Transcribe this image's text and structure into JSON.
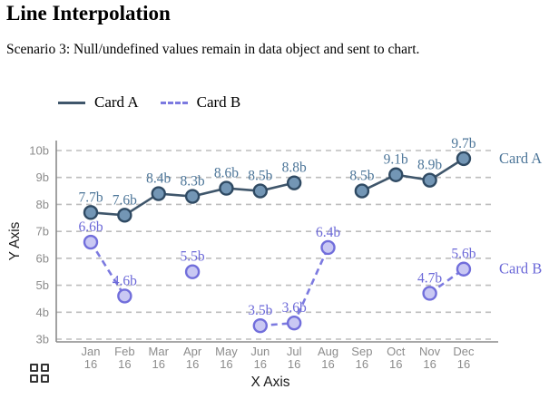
{
  "page": {
    "title": "Line Interpolation",
    "subtitle": "Scenario 3: Null/undefined values remain in data object and sent to chart."
  },
  "legend": {
    "position": "top-left",
    "items": [
      {
        "label": "Card A",
        "style": "solid"
      },
      {
        "label": "Card B",
        "style": "dashed"
      }
    ]
  },
  "chart_data": {
    "type": "line",
    "title": "Line Interpolation",
    "xlabel": "X Axis",
    "ylabel": "Y Axis",
    "ylim": [
      3,
      10
    ],
    "y_ticks": [
      "3b",
      "4b",
      "5b",
      "6b",
      "7b",
      "8b",
      "9b",
      "10b"
    ],
    "categories": [
      "Jan 16",
      "Feb 16",
      "Mar 16",
      "Apr 16",
      "May 16",
      "Jun 16",
      "Jul 16",
      "Aug 16",
      "Sep 16",
      "Oct 16",
      "Nov 16",
      "Dec 16"
    ],
    "grid": "horizontal-dashed",
    "legend_position": "top-left",
    "colors": {
      "grid": "#bdbdbd",
      "axis": "#8a8a8a",
      "tick_label": "#8c8c8c",
      "axis_label": "#1a1a1a"
    },
    "series": [
      {
        "name": "Card A",
        "line_style": "solid",
        "line_color": "#3f566b",
        "point_fill": "#7396b5",
        "point_stroke": "#2f4a63",
        "label_color": "#4d7699",
        "values": [
          7.7,
          7.6,
          8.4,
          8.3,
          8.6,
          8.5,
          8.8,
          null,
          8.5,
          9.1,
          8.9,
          9.7
        ],
        "labels": [
          "7.7b",
          "7.6b",
          "8.4b",
          "8.3b",
          "8.6b",
          "8.5b",
          "8.8b",
          null,
          "8.5b",
          "9.1b",
          "8.9b",
          "9.7b"
        ]
      },
      {
        "name": "Card B",
        "line_style": "dashed",
        "line_color": "#7c7ae0",
        "point_fill": "#c9c8f3",
        "point_stroke": "#716edb",
        "label_color": "#6b68d8",
        "values": [
          6.6,
          4.6,
          null,
          5.5,
          null,
          3.5,
          3.6,
          6.4,
          null,
          null,
          4.7,
          5.6
        ],
        "labels": [
          "6.6b",
          "4.6b",
          null,
          "5.5b",
          null,
          "3.5b",
          "3.6b",
          "6.4b",
          null,
          null,
          "4.7b",
          "5.6b"
        ]
      }
    ]
  },
  "icons": {
    "bottom_left": "grid-icon"
  }
}
